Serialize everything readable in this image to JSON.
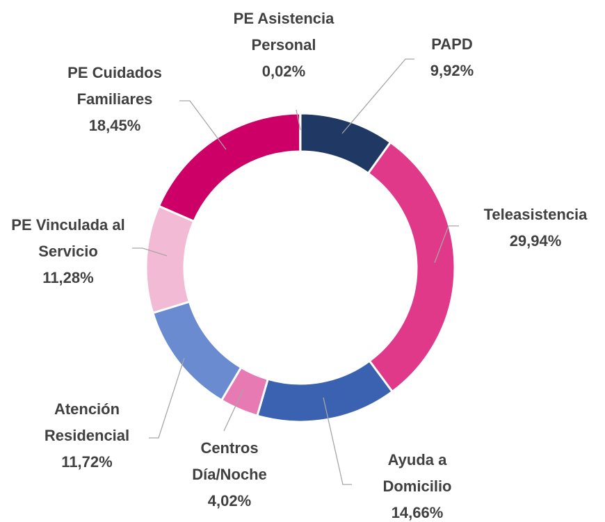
{
  "chart_data": {
    "type": "donut",
    "categories": [
      "PAPD",
      "Teleasistencia",
      "Ayuda a Domicilio",
      "Centros Día/Noche",
      "Atención Residencial",
      "PE Vinculada al Servicio",
      "PE Cuidados Familiares",
      "PE Asistencia Personal"
    ],
    "values": [
      9.92,
      29.94,
      14.66,
      4.02,
      11.72,
      11.28,
      18.45,
      0.02
    ],
    "value_labels": [
      "9,92%",
      "29,94%",
      "14,66%",
      "4,02%",
      "11,72%",
      "11,28%",
      "18,45%",
      "0,02%"
    ],
    "colors": [
      "#203864",
      "#e0398a",
      "#3a62b0",
      "#e87ab3",
      "#6a8bd0",
      "#f3bad5",
      "#cc0066",
      "#1f2f60"
    ]
  }
}
